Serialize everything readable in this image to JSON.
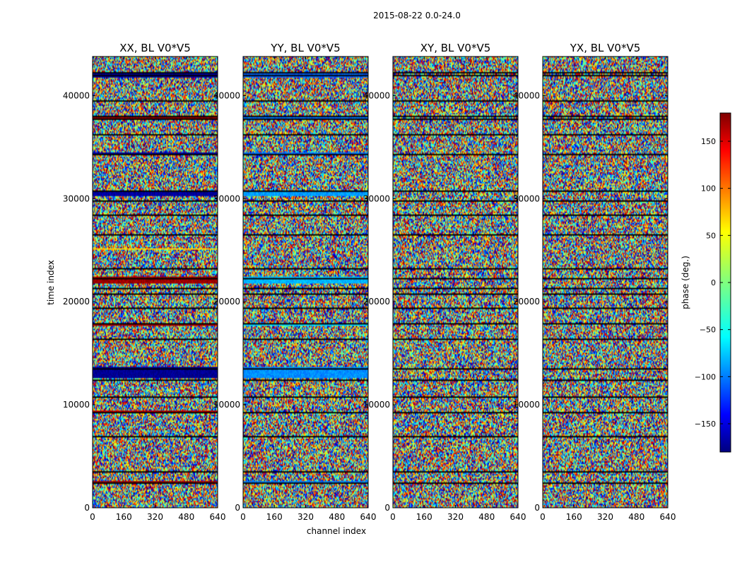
{
  "chart_data": {
    "type": "heatmap",
    "suptitle": "2015-08-22 0.0-24.0",
    "xlabel": "channel index",
    "ylabel": "time index",
    "xlim": [
      0,
      640
    ],
    "ylim": [
      0,
      43800
    ],
    "xticks": [
      0,
      160,
      320,
      480,
      640
    ],
    "yticks": [
      0,
      10000,
      20000,
      30000,
      40000
    ],
    "panels": [
      {
        "title": "XX, BL V0*V5",
        "key": "XX"
      },
      {
        "title": "YY, BL V0*V5",
        "key": "YY"
      },
      {
        "title": "XY, BL V0*V5",
        "key": "XY"
      },
      {
        "title": "YX, BL V0*V5",
        "key": "YX"
      }
    ],
    "colorbar": {
      "label": "phase (deg.)",
      "range": [
        -180,
        180
      ],
      "ticks": [
        150,
        100,
        50,
        0,
        -50,
        -100,
        -150
      ],
      "tick_labels": [
        "150",
        "100",
        "50",
        "0",
        "−50",
        "−100",
        "−150"
      ],
      "colormap": "jet"
    },
    "gap_rows": [
      2400,
      3500,
      6800,
      9200,
      10700,
      12300,
      13500,
      16400,
      17800,
      19300,
      20700,
      21300,
      22200,
      23200,
      26500,
      28400,
      29800,
      30700,
      34300,
      36300,
      37700,
      38000,
      39600,
      42000,
      42300
    ],
    "coherent_bands": [
      {
        "from": 2200,
        "to": 2600,
        "phase": {
          "XX": 170,
          "YY": -90,
          "XY": null,
          "YX": null
        }
      },
      {
        "from": 9200,
        "to": 9450,
        "phase": {
          "XX": 160,
          "YY": null,
          "XY": null,
          "YX": null
        }
      },
      {
        "from": 12500,
        "to": 13700,
        "phase": {
          "XX": -175,
          "YY": -85,
          "XY": null,
          "YX": null
        }
      },
      {
        "from": 17600,
        "to": 17900,
        "phase": {
          "XX": 165,
          "YY": -60,
          "XY": null,
          "YX": null
        }
      },
      {
        "from": 21700,
        "to": 22500,
        "phase": {
          "XX": 170,
          "YY": -70,
          "XY": null,
          "YX": null
        }
      },
      {
        "from": 25000,
        "to": 25200,
        "phase": {
          "XX": 60,
          "YY": null,
          "XY": null,
          "YX": null
        }
      },
      {
        "from": 30300,
        "to": 30800,
        "phase": {
          "XX": -170,
          "YY": -80,
          "XY": null,
          "YX": null
        }
      },
      {
        "from": 34200,
        "to": 34500,
        "phase": {
          "XX": -170,
          "YY": -95,
          "XY": null,
          "YX": null
        }
      },
      {
        "from": 37700,
        "to": 38100,
        "phase": {
          "XX": 175,
          "YY": -95,
          "XY": null,
          "YX": null
        }
      },
      {
        "from": 41800,
        "to": 42300,
        "phase": {
          "XX": -170,
          "YY": -100,
          "XY": null,
          "YX": null
        }
      }
    ]
  }
}
